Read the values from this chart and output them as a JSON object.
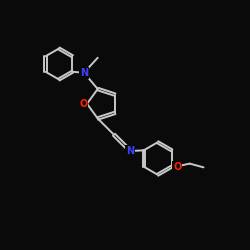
{
  "background_color": "#0a0a0a",
  "atom_color_N": "#4040ff",
  "atom_color_O": "#ff2200",
  "bond_color": "#c8c8c8",
  "bond_width": 1.4,
  "font_size_atom": 7.0,
  "xlim": [
    0,
    10
  ],
  "ylim": [
    0,
    10
  ]
}
